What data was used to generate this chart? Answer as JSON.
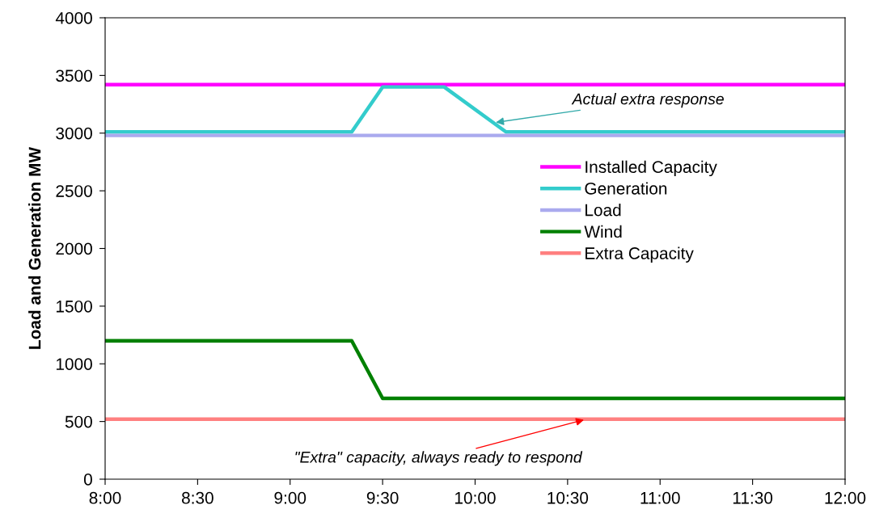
{
  "chart_data": {
    "type": "line",
    "ylabel": "Load and Generation MW",
    "x": [
      8,
      9.333,
      9.5,
      9.833,
      10.167,
      12
    ],
    "xlim": [
      8,
      12
    ],
    "xticks": [
      {
        "value": 8,
        "label": "8:00"
      },
      {
        "value": 8.5,
        "label": "8:30"
      },
      {
        "value": 9,
        "label": "9:00"
      },
      {
        "value": 9.5,
        "label": "9:30"
      },
      {
        "value": 10,
        "label": "10:00"
      },
      {
        "value": 10.5,
        "label": "10:30"
      },
      {
        "value": 11,
        "label": "11:00"
      },
      {
        "value": 11.5,
        "label": "11:30"
      },
      {
        "value": 12,
        "label": "12:00"
      }
    ],
    "ylim": [
      0,
      4000
    ],
    "yticks": [
      0,
      500,
      1000,
      1500,
      2000,
      2500,
      3000,
      3500,
      4000
    ],
    "grid": false,
    "legend": "right",
    "marker": "none",
    "line_style": "solid",
    "series": [
      {
        "name": "Installed Capacity",
        "color": "#ff00ff",
        "values": [
          3420,
          3420,
          3420,
          3420,
          3420,
          3420
        ]
      },
      {
        "name": "Generation",
        "color": "#33cccc",
        "values": [
          3010,
          3010,
          3400,
          3400,
          3010,
          3010
        ]
      },
      {
        "name": "Load",
        "color": "#aaaaee",
        "values": [
          2980,
          2980,
          2980,
          2980,
          2980,
          2980
        ]
      },
      {
        "name": "Wind",
        "color": "#008000",
        "values": [
          1200,
          1200,
          700,
          700,
          700,
          700
        ]
      },
      {
        "name": "Extra Capacity",
        "color": "#ff8080",
        "values": [
          520,
          520,
          520,
          520,
          520,
          520
        ]
      }
    ],
    "annotations": [
      {
        "text": "Actual extra response",
        "x": 10.1,
        "y": 3090
      },
      {
        "text": "\"Extra\" capacity, always ready to respond",
        "x": 10.6,
        "y": 520
      }
    ]
  }
}
